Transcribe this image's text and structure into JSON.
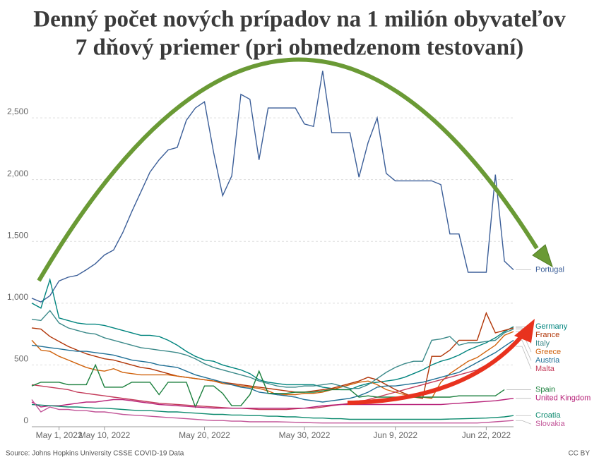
{
  "chart_data": {
    "type": "line",
    "title": "Denný počet nových prípadov na 1 milión obyvateľov",
    "subtitle": "7 dňový priemer (pri obmedzenom testovaní)",
    "source": "Source: Johns Hopkins University CSSE COVID-19 Data",
    "license": "CC BY",
    "categories": [
      null,
      null,
      null,
      "May 1, 2022",
      null,
      null,
      null,
      null,
      "May 10, 2022",
      null,
      null,
      null,
      null,
      null,
      null,
      null,
      null,
      null,
      null,
      "May 20, 2022",
      null,
      null,
      null,
      null,
      null,
      null,
      null,
      null,
      null,
      null,
      "May 30, 2022",
      null,
      null,
      null,
      null,
      null,
      null,
      null,
      null,
      null,
      "Jun 9, 2022",
      null,
      null,
      null,
      null,
      null,
      null,
      null,
      null,
      null,
      "Jun 22, 2022",
      null,
      null,
      null
    ],
    "ylim": [
      0,
      2900
    ],
    "yticks": [
      0,
      500,
      {
        "value": 1000,
        "label": "1,000"
      },
      {
        "value": 1500,
        "label": "1,500"
      },
      {
        "value": 2000,
        "label": "2,000"
      },
      {
        "value": 2500,
        "label": "2,500"
      }
    ],
    "grid": true,
    "series": [
      {
        "name": "Portugal",
        "color": "#3b5e98",
        "values": [
          1040,
          1010,
          1060,
          1180,
          1210,
          1225,
          1270,
          1320,
          1390,
          1430,
          1570,
          1740,
          1900,
          2060,
          2160,
          2240,
          2260,
          2480,
          2580,
          2630,
          2220,
          1870,
          2030,
          2690,
          2650,
          2160,
          2580,
          2580,
          2580,
          2580,
          2450,
          2430,
          2880,
          2380,
          2380,
          2380,
          2020,
          2300,
          2500,
          2050,
          1990,
          1990,
          1990,
          1990,
          1990,
          1960,
          1560,
          1560,
          1250,
          1250,
          1250,
          2040,
          1340,
          1270
        ]
      },
      {
        "name": "Germany",
        "color": "#00847e",
        "values": [
          1000,
          960,
          1190,
          880,
          860,
          840,
          830,
          830,
          820,
          800,
          780,
          760,
          740,
          740,
          730,
          700,
          660,
          610,
          570,
          540,
          530,
          500,
          480,
          460,
          430,
          380,
          360,
          350,
          340,
          340,
          340,
          340,
          320,
          310,
          300,
          300,
          330,
          350,
          360,
          370,
          380,
          400,
          430,
          460,
          500,
          530,
          550,
          580,
          620,
          650,
          680,
          720,
          770,
          810
        ]
      },
      {
        "name": "France",
        "color": "#b13507",
        "values": [
          800,
          790,
          730,
          690,
          650,
          620,
          590,
          570,
          550,
          540,
          520,
          500,
          480,
          470,
          450,
          430,
          410,
          400,
          390,
          380,
          370,
          360,
          350,
          340,
          330,
          320,
          310,
          300,
          290,
          280,
          280,
          290,
          300,
          310,
          330,
          350,
          370,
          400,
          380,
          340,
          300,
          270,
          240,
          230,
          570,
          570,
          620,
          700,
          700,
          700,
          920,
          760,
          780,
          800
        ]
      },
      {
        "name": "Greece",
        "color": "#d0620c",
        "values": [
          700,
          620,
          610,
          570,
          540,
          510,
          480,
          460,
          450,
          470,
          440,
          430,
          420,
          420,
          420,
          420,
          410,
          400,
          390,
          380,
          370,
          350,
          340,
          330,
          320,
          310,
          290,
          260,
          260,
          260,
          270,
          270,
          280,
          300,
          320,
          340,
          360,
          370,
          340,
          300,
          280,
          260,
          240,
          240,
          230,
          360,
          430,
          480,
          530,
          560,
          610,
          660,
          740,
          770
        ]
      },
      {
        "name": "Austria",
        "color": "#1f6f95",
        "values": [
          660,
          650,
          640,
          630,
          620,
          610,
          610,
          600,
          590,
          580,
          560,
          540,
          530,
          520,
          500,
          490,
          480,
          450,
          420,
          400,
          380,
          360,
          340,
          320,
          310,
          280,
          270,
          260,
          250,
          240,
          220,
          210,
          200,
          210,
          220,
          230,
          250,
          280,
          320,
          330,
          330,
          340,
          350,
          360,
          380,
          400,
          420,
          440,
          480,
          520,
          560,
          600,
          650,
          700
        ]
      },
      {
        "name": "Italy",
        "color": "#3c8a8a",
        "values": [
          870,
          860,
          940,
          840,
          800,
          780,
          760,
          750,
          720,
          700,
          680,
          660,
          640,
          630,
          620,
          610,
          600,
          580,
          550,
          510,
          480,
          460,
          440,
          420,
          400,
          370,
          350,
          330,
          320,
          320,
          330,
          330,
          340,
          350,
          330,
          310,
          310,
          340,
          390,
          440,
          480,
          510,
          530,
          530,
          700,
          710,
          730,
          660,
          680,
          680,
          690,
          700,
          760,
          790
        ]
      },
      {
        "name": "Malta",
        "color": "#c43b5a",
        "values": [
          340,
          330,
          320,
          310,
          300,
          280,
          270,
          260,
          250,
          240,
          230,
          220,
          210,
          200,
          190,
          185,
          180,
          175,
          170,
          165,
          160,
          155,
          150,
          150,
          145,
          140,
          140,
          140,
          140,
          145,
          150,
          150,
          160,
          170,
          180,
          190,
          200,
          220,
          240,
          260,
          280,
          300,
          320,
          340,
          360,
          380,
          400,
          420,
          440,
          460,
          500,
          550,
          600,
          650
        ]
      },
      {
        "name": "Spain",
        "color": "#1a7f3c",
        "values": [
          330,
          360,
          360,
          360,
          340,
          340,
          340,
          500,
          320,
          320,
          320,
          360,
          360,
          360,
          260,
          360,
          360,
          360,
          160,
          330,
          330,
          270,
          170,
          170,
          260,
          450,
          270,
          270,
          270,
          280,
          280,
          280,
          290,
          300,
          300,
          300,
          240,
          250,
          240,
          240,
          240,
          240,
          240,
          240,
          240,
          240,
          240,
          250,
          250,
          250,
          250,
          250,
          300,
          null
        ]
      },
      {
        "name": "United Kingdom",
        "color": "#b8247a",
        "values": [
          200,
          160,
          170,
          170,
          180,
          190,
          200,
          200,
          210,
          220,
          220,
          210,
          200,
          190,
          180,
          175,
          170,
          165,
          160,
          155,
          150,
          150,
          150,
          150,
          150,
          150,
          150,
          150,
          150,
          150,
          150,
          160,
          170,
          175,
          180,
          180,
          180,
          180,
          180,
          180,
          180,
          180,
          180,
          180,
          180,
          180,
          185,
          190,
          195,
          200,
          205,
          210,
          220,
          230
        ]
      },
      {
        "name": "Croatia",
        "color": "#0c8a6e",
        "values": [
          180,
          175,
          170,
          165,
          160,
          160,
          155,
          150,
          150,
          145,
          140,
          135,
          130,
          130,
          125,
          120,
          120,
          115,
          110,
          105,
          100,
          100,
          95,
          95,
          90,
          90,
          85,
          85,
          80,
          80,
          75,
          70,
          70,
          65,
          65,
          60,
          60,
          60,
          60,
          60,
          60,
          60,
          60,
          60,
          60,
          60,
          62,
          64,
          66,
          68,
          70,
          75,
          80,
          90
        ]
      },
      {
        "name": "Slovakia",
        "color": "#c25598",
        "values": [
          220,
          120,
          160,
          140,
          140,
          130,
          130,
          120,
          120,
          110,
          100,
          95,
          90,
          85,
          80,
          75,
          70,
          65,
          60,
          55,
          50,
          50,
          45,
          45,
          40,
          40,
          40,
          40,
          38,
          36,
          34,
          32,
          30,
          30,
          30,
          30,
          30,
          30,
          30,
          30,
          30,
          30,
          30,
          30,
          30,
          30,
          30,
          30,
          30,
          30,
          35,
          40,
          45,
          50
        ]
      }
    ]
  }
}
